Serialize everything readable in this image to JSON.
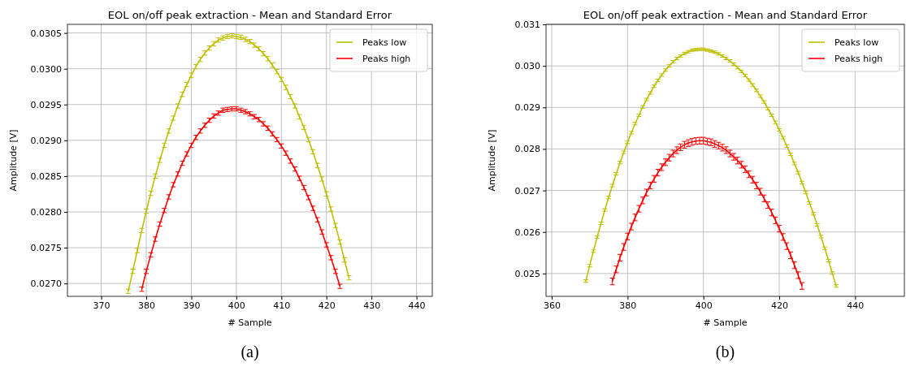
{
  "chart_data": [
    {
      "type": "line",
      "title": "EOL on/off peak extraction - Mean and Standard Error",
      "xlabel": "# Sample",
      "ylabel": "Amplitude [V]",
      "annotations": [
        "(a)"
      ],
      "grid": true,
      "legend": "top right",
      "xlim": [
        362.5,
        443.5
      ],
      "xticks": [
        370,
        380,
        390,
        400,
        410,
        420,
        430,
        440
      ],
      "ylim": [
        0.02682,
        0.03062
      ],
      "yticks": [
        {
          "value": 0.027,
          "label": "0.0270"
        },
        {
          "value": 0.0275,
          "label": "0.0275"
        },
        {
          "value": 0.028,
          "label": "0.0280"
        },
        {
          "value": 0.0285,
          "label": "0.0285"
        },
        {
          "value": 0.029,
          "label": "0.0290"
        },
        {
          "value": 0.0295,
          "label": "0.0295"
        },
        {
          "value": 0.03,
          "label": "0.0300"
        },
        {
          "value": 0.0305,
          "label": "0.0305"
        }
      ],
      "series": [
        {
          "name": "Peaks low",
          "color": "#bfbf00",
          "x": [
            376,
            377,
            378,
            379,
            380,
            381,
            382,
            383,
            384,
            385,
            386,
            387,
            388,
            389,
            390,
            391,
            392,
            393,
            394,
            395,
            396,
            397,
            398,
            399,
            400,
            401,
            402,
            403,
            404,
            405,
            406,
            407,
            408,
            409,
            410,
            411,
            412,
            413,
            414,
            415,
            416,
            417,
            418,
            419,
            420,
            421,
            422,
            423,
            424,
            425
          ],
          "values": [
            0.02689,
            0.02717,
            0.02746,
            0.02774,
            0.02801,
            0.02826,
            0.0285,
            0.02872,
            0.02893,
            0.02913,
            0.02931,
            0.02948,
            0.02964,
            0.02978,
            0.02991,
            0.03003,
            0.03013,
            0.03022,
            0.03029,
            0.03035,
            0.0304,
            0.03043,
            0.03045,
            0.03046,
            0.03045,
            0.03044,
            0.03041,
            0.03038,
            0.03033,
            0.03028,
            0.03021,
            0.03014,
            0.03005,
            0.02996,
            0.02985,
            0.02974,
            0.02961,
            0.02948,
            0.02933,
            0.02918,
            0.02901,
            0.02884,
            0.02865,
            0.02846,
            0.02825,
            0.02804,
            0.02781,
            0.02758,
            0.02733,
            0.02708
          ],
          "errors": [
            3e-05,
            3e-05,
            3e-05,
            3e-05,
            3e-05,
            3e-05,
            3e-05,
            3e-05,
            3e-05,
            3e-05,
            3e-05,
            3e-05,
            3e-05,
            3e-05,
            3e-05,
            3e-05,
            3e-05,
            3e-05,
            3e-05,
            3e-05,
            3e-05,
            3e-05,
            3e-05,
            3e-05,
            3e-05,
            3e-05,
            3e-05,
            3e-05,
            3e-05,
            3e-05,
            3e-05,
            3e-05,
            3e-05,
            3e-05,
            3e-05,
            3e-05,
            3e-05,
            3e-05,
            3e-05,
            3e-05,
            3e-05,
            3e-05,
            3e-05,
            3e-05,
            3e-05,
            3e-05,
            3e-05,
            3e-05,
            3e-05,
            3e-05
          ]
        },
        {
          "name": "Peaks high",
          "color": "#ff0000",
          "x": [
            379,
            380,
            381,
            382,
            383,
            384,
            385,
            386,
            387,
            388,
            389,
            390,
            391,
            392,
            393,
            394,
            395,
            396,
            397,
            398,
            399,
            400,
            401,
            402,
            403,
            404,
            405,
            406,
            407,
            408,
            409,
            410,
            411,
            412,
            413,
            414,
            415,
            416,
            417,
            418,
            419,
            420,
            421,
            422,
            423
          ],
          "values": [
            0.02692,
            0.02717,
            0.0274,
            0.02762,
            0.02783,
            0.02802,
            0.02821,
            0.02838,
            0.02853,
            0.02868,
            0.02881,
            0.02893,
            0.02904,
            0.02913,
            0.02921,
            0.02928,
            0.02934,
            0.02938,
            0.02942,
            0.02943,
            0.02944,
            0.02944,
            0.02942,
            0.0294,
            0.02937,
            0.02933,
            0.02929,
            0.02923,
            0.02917,
            0.02909,
            0.02901,
            0.02892,
            0.02882,
            0.02871,
            0.0286,
            0.02847,
            0.02834,
            0.0282,
            0.02805,
            0.02789,
            0.02772,
            0.02754,
            0.02736,
            0.02717,
            0.02696
          ],
          "errors": [
            3e-05,
            3e-05,
            3e-05,
            3e-05,
            3e-05,
            3e-05,
            3e-05,
            3e-05,
            3e-05,
            3e-05,
            3e-05,
            3e-05,
            3e-05,
            3e-05,
            3e-05,
            3e-05,
            3e-05,
            3e-05,
            3e-05,
            3e-05,
            3e-05,
            3e-05,
            3e-05,
            3e-05,
            3e-05,
            3e-05,
            3e-05,
            3e-05,
            3e-05,
            3e-05,
            3e-05,
            3e-05,
            3e-05,
            3e-05,
            3e-05,
            3e-05,
            3e-05,
            3e-05,
            3e-05,
            3e-05,
            3e-05,
            3e-05,
            3e-05,
            3e-05,
            3e-05
          ]
        }
      ]
    },
    {
      "type": "line",
      "title": "EOL on/off peak extraction - Mean and Standard Error",
      "xlabel": "# Sample",
      "ylabel": "Amplitude [V]",
      "annotations": [
        "(b)"
      ],
      "grid": true,
      "legend": "top right",
      "xlim": [
        358.5,
        453
      ],
      "xticks": [
        360,
        380,
        400,
        420,
        440
      ],
      "ylim": [
        0.02445,
        0.031
      ],
      "yticks": [
        {
          "value": 0.025,
          "label": "0.025"
        },
        {
          "value": 0.026,
          "label": "0.026"
        },
        {
          "value": 0.027,
          "label": "0.027"
        },
        {
          "value": 0.028,
          "label": "0.028"
        },
        {
          "value": 0.029,
          "label": "0.029"
        },
        {
          "value": 0.03,
          "label": "0.030"
        },
        {
          "value": 0.031,
          "label": "0.031"
        }
      ],
      "series": [
        {
          "name": "Peaks low",
          "color": "#bfbf00",
          "x": [
            369,
            370,
            371,
            372,
            373,
            374,
            375,
            376,
            377,
            378,
            379,
            380,
            381,
            382,
            383,
            384,
            385,
            386,
            387,
            388,
            389,
            390,
            391,
            392,
            393,
            394,
            395,
            396,
            397,
            398,
            399,
            400,
            401,
            402,
            403,
            404,
            405,
            406,
            407,
            408,
            409,
            410,
            411,
            412,
            413,
            414,
            415,
            416,
            417,
            418,
            419,
            420,
            421,
            422,
            423,
            424,
            425,
            426,
            427,
            428,
            429,
            430,
            431,
            432,
            433,
            434,
            435
          ],
          "values": [
            0.02482,
            0.02519,
            0.02554,
            0.02588,
            0.02621,
            0.02653,
            0.02683,
            0.02712,
            0.0274,
            0.02767,
            0.02792,
            0.02816,
            0.02839,
            0.02861,
            0.02881,
            0.02901,
            0.02919,
            0.02935,
            0.02951,
            0.02965,
            0.02978,
            0.0299,
            0.03,
            0.0301,
            0.03018,
            0.03024,
            0.0303,
            0.03034,
            0.03038,
            0.03039,
            0.0304,
            0.0304,
            0.03038,
            0.03036,
            0.03033,
            0.03029,
            0.03024,
            0.03018,
            0.03012,
            0.03004,
            0.02996,
            0.02987,
            0.02977,
            0.02966,
            0.02954,
            0.02941,
            0.02927,
            0.02913,
            0.02897,
            0.02881,
            0.02864,
            0.02846,
            0.02827,
            0.02807,
            0.02787,
            0.02765,
            0.02743,
            0.02719,
            0.02695,
            0.0267,
            0.02644,
            0.02617,
            0.02589,
            0.02561,
            0.02531,
            0.02501,
            0.0247
          ],
          "errors": [
            3e-05,
            3e-05,
            3e-05,
            3e-05,
            3e-05,
            3e-05,
            3e-05,
            3e-05,
            3e-05,
            3e-05,
            3e-05,
            3e-05,
            3e-05,
            3e-05,
            3e-05,
            3e-05,
            3e-05,
            3e-05,
            3e-05,
            3e-05,
            3e-05,
            3e-05,
            3e-05,
            3e-05,
            3e-05,
            3e-05,
            3e-05,
            3e-05,
            3e-05,
            3e-05,
            3e-05,
            3e-05,
            3e-05,
            3e-05,
            3e-05,
            3e-05,
            3e-05,
            3e-05,
            3e-05,
            3e-05,
            3e-05,
            3e-05,
            3e-05,
            3e-05,
            3e-05,
            3e-05,
            3e-05,
            3e-05,
            3e-05,
            3e-05,
            3e-05,
            3e-05,
            3e-05,
            3e-05,
            3e-05,
            3e-05,
            3e-05,
            3e-05,
            3e-05,
            3e-05,
            3e-05,
            3e-05,
            3e-05,
            3e-05,
            3e-05,
            3e-05,
            3e-05
          ]
        },
        {
          "name": "Peaks high",
          "color": "#ff0000",
          "x": [
            376,
            377,
            378,
            379,
            380,
            381,
            382,
            383,
            384,
            385,
            386,
            387,
            388,
            389,
            390,
            391,
            392,
            393,
            394,
            395,
            396,
            397,
            398,
            399,
            400,
            401,
            402,
            403,
            404,
            405,
            406,
            407,
            408,
            409,
            410,
            411,
            412,
            413,
            414,
            415,
            416,
            417,
            418,
            419,
            420,
            421,
            422,
            423,
            424,
            425,
            426
          ],
          "values": [
            0.02481,
            0.0251,
            0.02538,
            0.02564,
            0.02589,
            0.02613,
            0.02635,
            0.02656,
            0.02676,
            0.02695,
            0.02712,
            0.02728,
            0.02743,
            0.02756,
            0.02768,
            0.02779,
            0.02789,
            0.02797,
            0.02804,
            0.0281,
            0.02814,
            0.02817,
            0.02819,
            0.0282,
            0.0282,
            0.02818,
            0.02816,
            0.02812,
            0.02808,
            0.02803,
            0.02797,
            0.02789,
            0.02781,
            0.02772,
            0.02762,
            0.02751,
            0.02739,
            0.02726,
            0.02712,
            0.02697,
            0.02681,
            0.02665,
            0.02647,
            0.02628,
            0.02608,
            0.02588,
            0.02566,
            0.02544,
            0.0252,
            0.02496,
            0.0247
          ],
          "errors": [
            8e-05,
            8e-05,
            8e-05,
            8e-05,
            8e-05,
            8e-05,
            8e-05,
            8e-05,
            8e-05,
            8e-05,
            8e-05,
            8e-05,
            8e-05,
            8e-05,
            8e-05,
            8e-05,
            8e-05,
            8e-05,
            8e-05,
            8e-05,
            8e-05,
            8e-05,
            8e-05,
            8e-05,
            8e-05,
            8e-05,
            8e-05,
            8e-05,
            8e-05,
            8e-05,
            8e-05,
            8e-05,
            8e-05,
            8e-05,
            8e-05,
            8e-05,
            8e-05,
            8e-05,
            8e-05,
            8e-05,
            8e-05,
            8e-05,
            8e-05,
            8e-05,
            8e-05,
            8e-05,
            8e-05,
            8e-05,
            8e-05,
            8e-05,
            8e-05
          ]
        }
      ]
    }
  ]
}
